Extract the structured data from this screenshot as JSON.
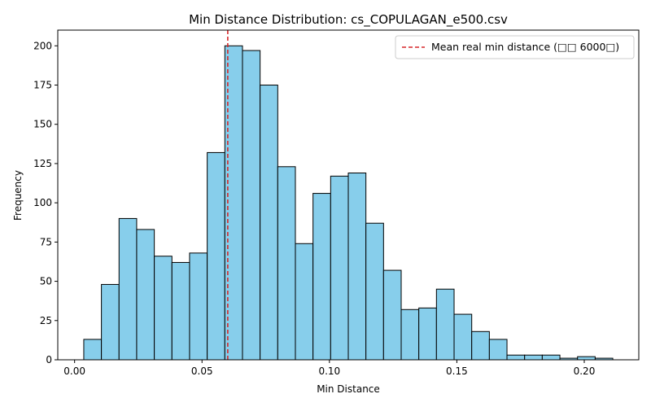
{
  "chart_data": {
    "type": "histogram",
    "title": "Min Distance Distribution: cs_COPULAGAN_e500.csv",
    "xlabel": "Min Distance",
    "ylabel": "Frequency",
    "xlim": [
      -0.0066,
      0.2214
    ],
    "ylim": [
      0,
      210
    ],
    "xticks": [
      0.0,
      0.05,
      0.1,
      0.15,
      0.2
    ],
    "xtick_labels": [
      "0.00",
      "0.05",
      "0.10",
      "0.15",
      "0.20"
    ],
    "yticks": [
      0,
      25,
      50,
      75,
      100,
      125,
      150,
      175,
      200
    ],
    "bin_start": 0.0036,
    "bin_width": 0.00692,
    "values": [
      13,
      48,
      90,
      83,
      66,
      62,
      68,
      132,
      200,
      197,
      175,
      123,
      74,
      106,
      117,
      119,
      87,
      57,
      32,
      33,
      45,
      29,
      18,
      13,
      3,
      3,
      3,
      1,
      2,
      1
    ],
    "bar_color": "#87CEEB",
    "bar_edge_color": "#000000",
    "mean_line": {
      "x": 0.0601,
      "color": "#d62728",
      "style": "dashed",
      "label": "Mean real min distance (□□ 6000□)"
    },
    "legend_position": "top-right",
    "grid": false
  }
}
